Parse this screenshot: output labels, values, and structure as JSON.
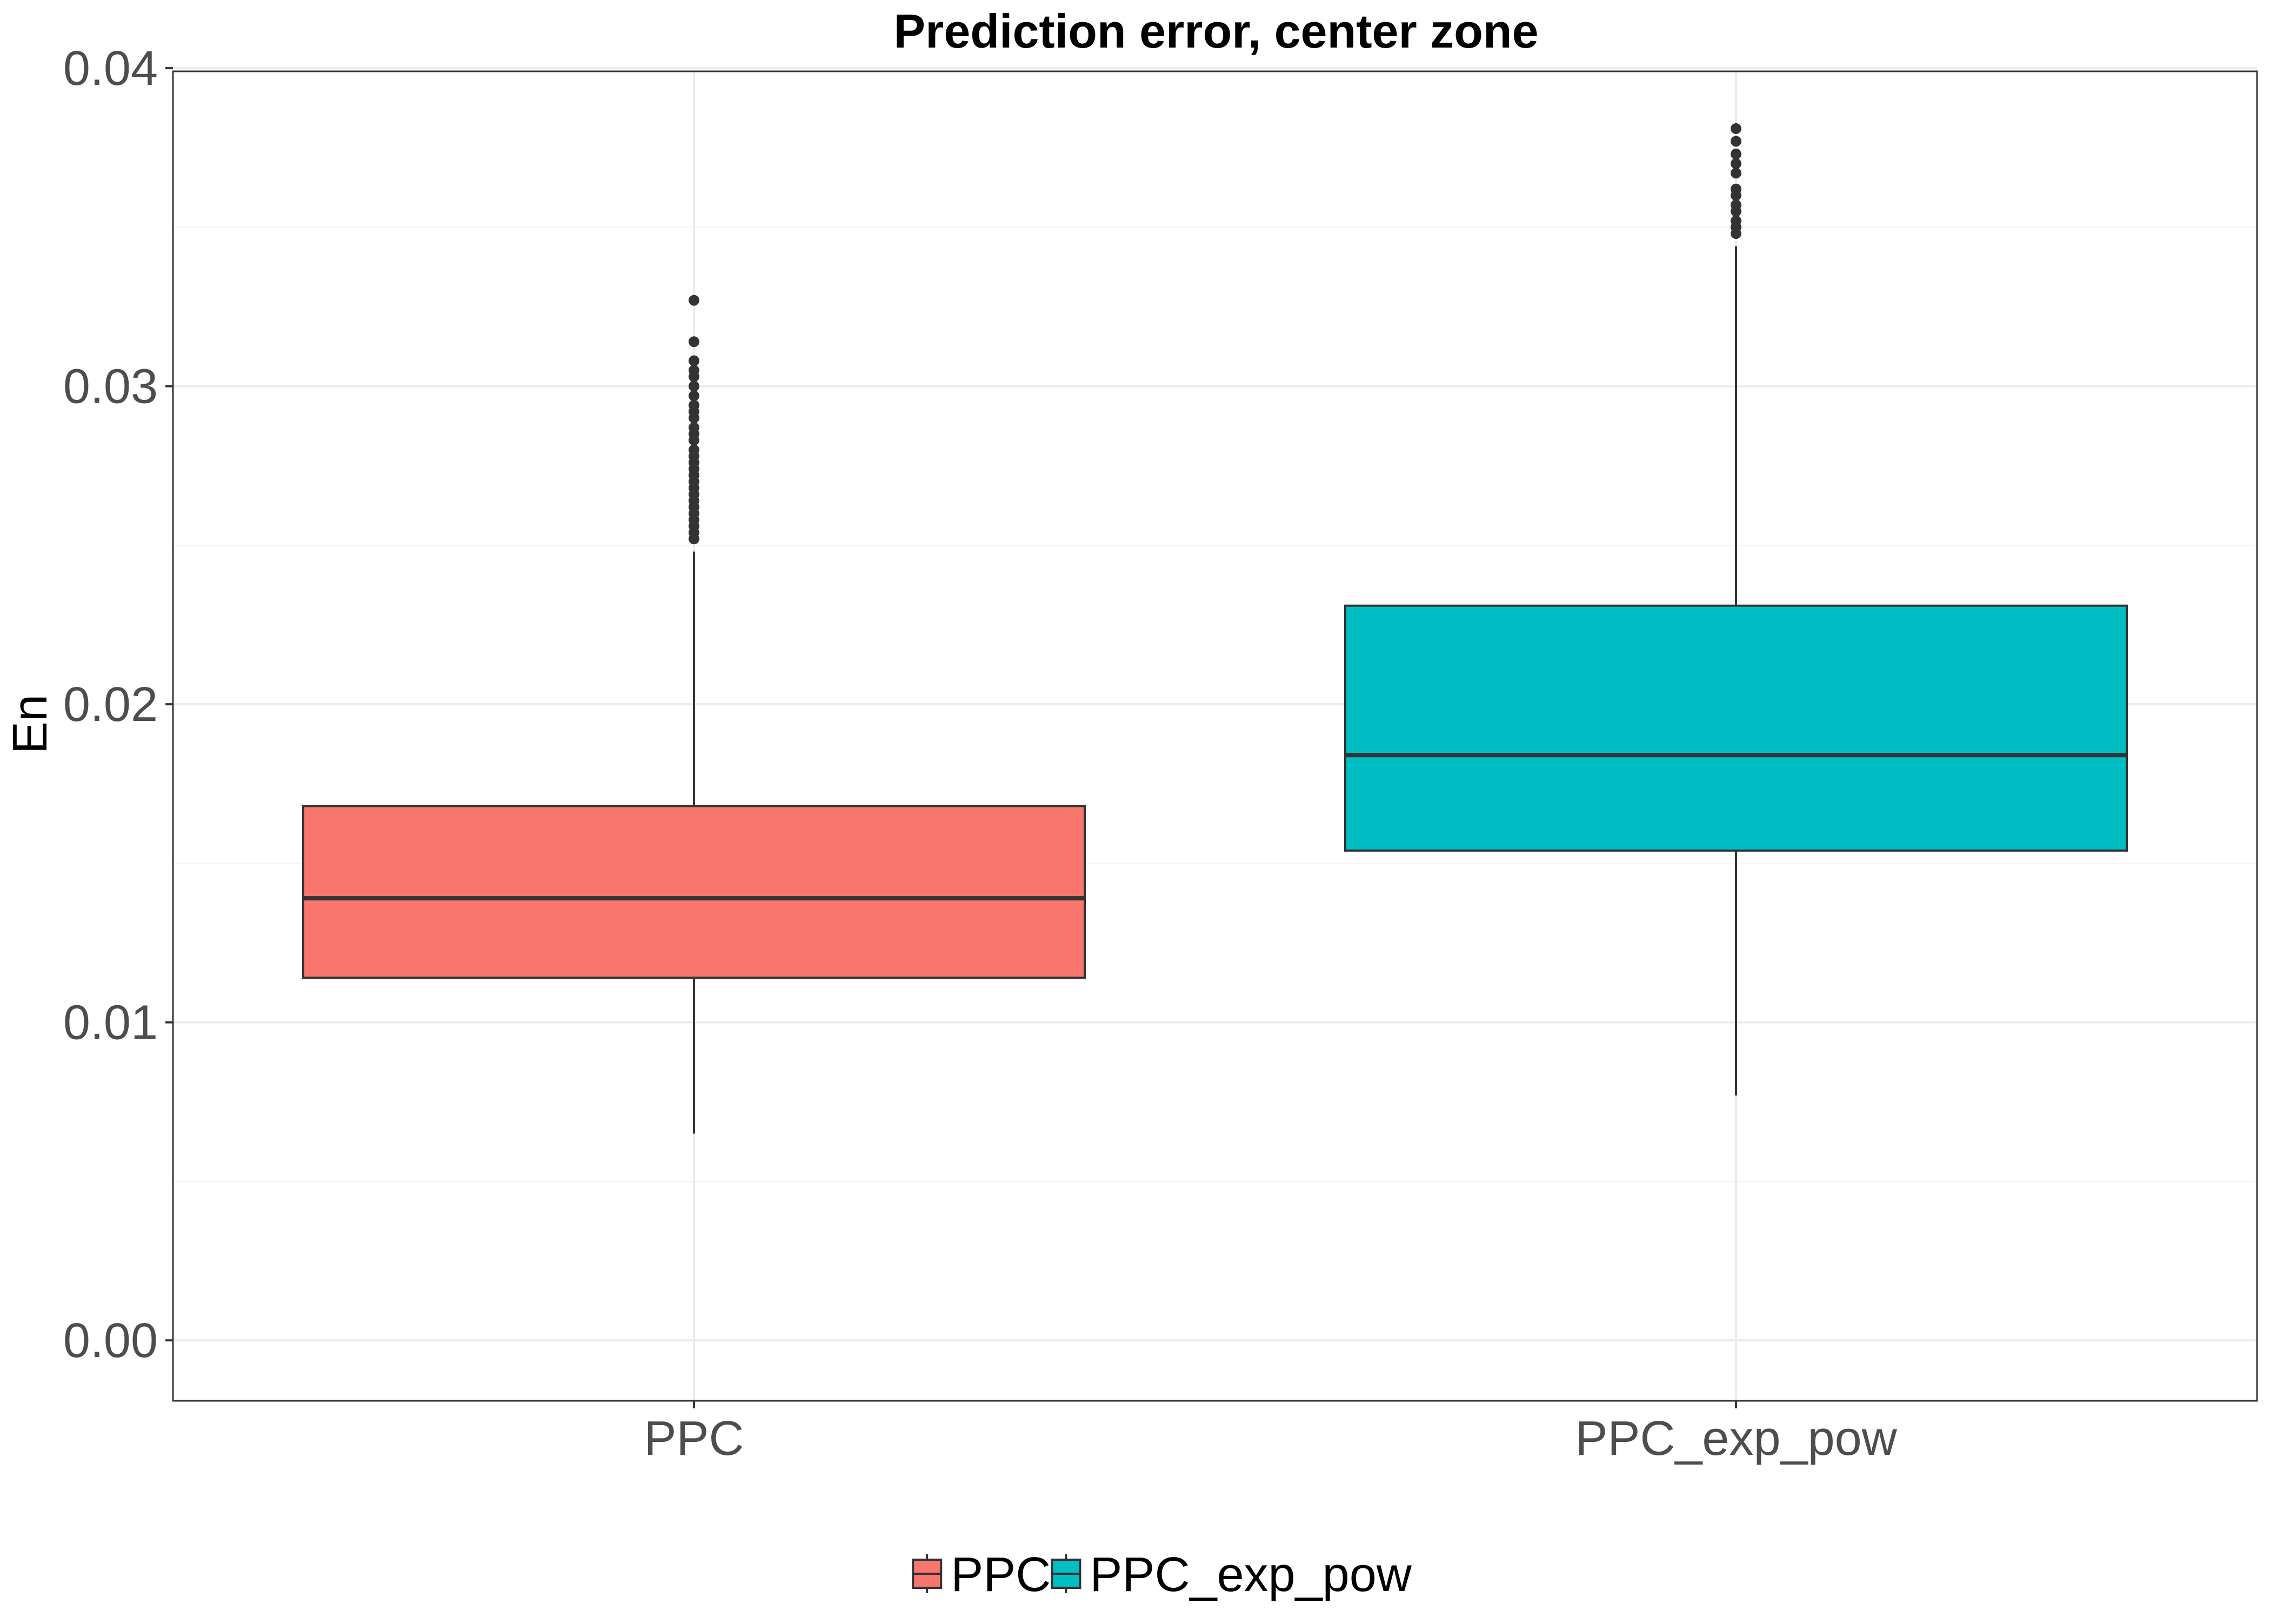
{
  "chart_data": {
    "type": "box",
    "title": "Prediction error, center zone",
    "xlabel": "",
    "ylabel": "En",
    "ylim": [
      -0.0019,
      0.0399
    ],
    "yticks": [
      0.0,
      0.01,
      0.02,
      0.03,
      0.04
    ],
    "ytick_labels": [
      "0.00",
      "0.01",
      "0.02",
      "0.03",
      "0.04"
    ],
    "grid": true,
    "legend_position": "bottom",
    "categories": [
      "PPC",
      "PPC_exp_pow"
    ],
    "series": [
      {
        "name": "PPC",
        "color": "#F8766D",
        "whisker_low": 0.0065,
        "q1": 0.0114,
        "median": 0.0139,
        "q3": 0.0168,
        "whisker_high": 0.0248,
        "outliers": [
          0.0252,
          0.0254,
          0.0256,
          0.0258,
          0.026,
          0.0262,
          0.0264,
          0.0266,
          0.0268,
          0.027,
          0.0272,
          0.0274,
          0.0276,
          0.0278,
          0.028,
          0.0283,
          0.0285,
          0.0287,
          0.029,
          0.0292,
          0.0294,
          0.0297,
          0.03,
          0.0303,
          0.0305,
          0.0308,
          0.0314,
          0.0327
        ]
      },
      {
        "name": "PPC_exp_pow",
        "color": "#00BFC4",
        "whisker_low": 0.0077,
        "q1": 0.0154,
        "median": 0.0184,
        "q3": 0.0231,
        "whisker_high": 0.0344,
        "outliers": [
          0.0348,
          0.035,
          0.0352,
          0.0355,
          0.0357,
          0.036,
          0.0362,
          0.0367,
          0.037,
          0.0373,
          0.0377,
          0.0381
        ]
      }
    ]
  }
}
